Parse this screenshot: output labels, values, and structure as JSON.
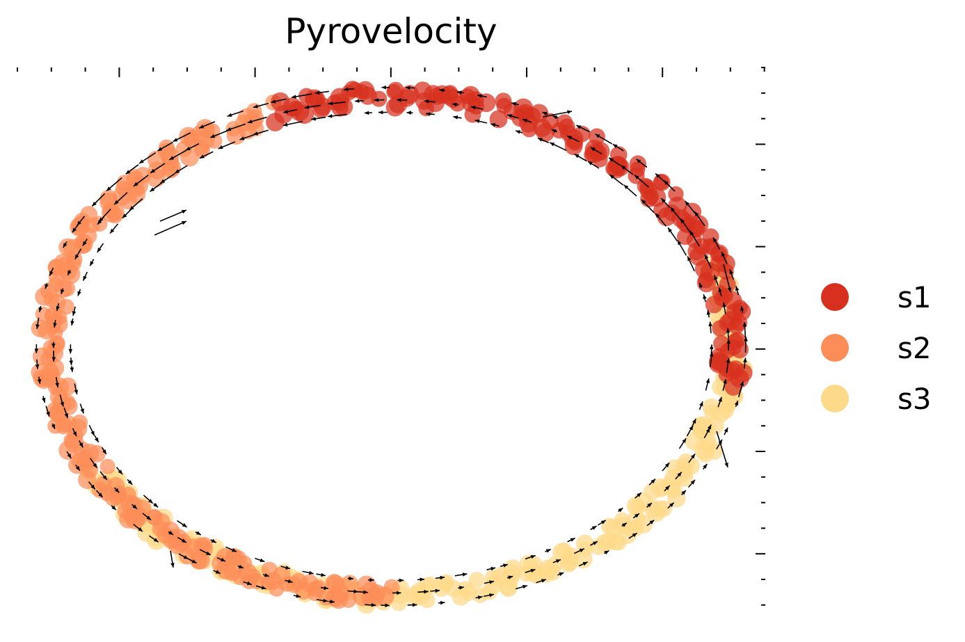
{
  "chart_data": {
    "type": "scatter",
    "title": "Pyrovelocity",
    "xlabel": "",
    "ylabel": "",
    "xlim": [
      -1.1,
      1.1
    ],
    "ylim": [
      -1.1,
      1.1
    ],
    "grid": false,
    "legend_position": "right",
    "legend": [
      {
        "name": "s1",
        "color": "#d7301f"
      },
      {
        "name": "s2",
        "color": "#fc8d59"
      },
      {
        "name": "s3",
        "color": "#fdd98a"
      }
    ],
    "series": [
      {
        "name": "s1",
        "color": "#d7301f",
        "angle_range": [
          -110,
          10
        ]
      },
      {
        "name": "s2",
        "color": "#fc8d59",
        "angle_range": [
          -270,
          -110
        ]
      },
      {
        "name": "s3",
        "color": "#fdd98a",
        "angle_range": [
          -20,
          150
        ]
      }
    ],
    "vector_field": {
      "present": true,
      "arrow_color": "#000000"
    }
  }
}
